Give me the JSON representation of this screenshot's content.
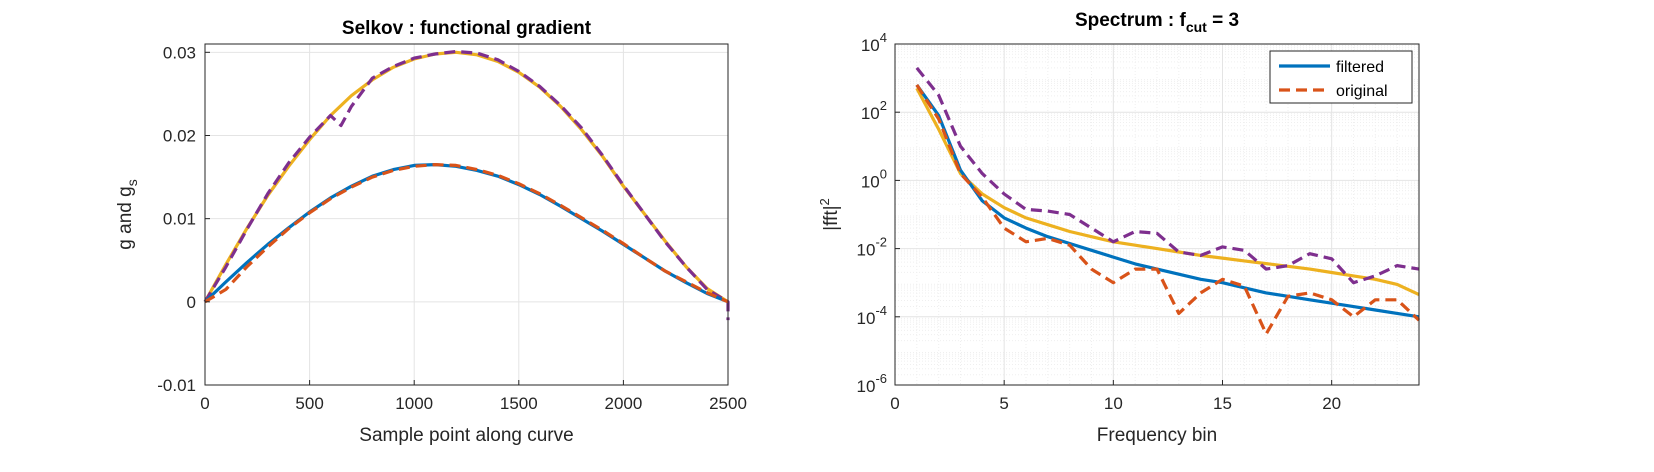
{
  "colors": {
    "blue": "#0072BD",
    "orange": "#D95319",
    "yellow": "#EDB120",
    "purple": "#7E2F8E"
  },
  "chart_data": [
    {
      "type": "line",
      "title": "Selkov : functional gradient",
      "xlabel": "Sample point along curve",
      "ylabel": "g and g",
      "ylabel_sub": "s",
      "xlim": [
        0,
        2500
      ],
      "ylim": [
        -0.01,
        0.031
      ],
      "xticks": [
        0,
        500,
        1000,
        1500,
        2000,
        2500
      ],
      "xtick_labels": [
        "0",
        "500",
        "1000",
        "1500",
        "2000",
        "2500"
      ],
      "yticks": [
        -0.01,
        0,
        0.01,
        0.02,
        0.03
      ],
      "ytick_labels": [
        "-0.01",
        "0",
        "0.01",
        "0.02",
        "0.03"
      ],
      "grid": true,
      "series": [
        {
          "color": "#EDB120",
          "style": "solid",
          "x": [
            0,
            100,
            200,
            300,
            400,
            500,
            600,
            700,
            800,
            900,
            1000,
            1100,
            1200,
            1300,
            1400,
            1500,
            1600,
            1700,
            1800,
            1900,
            2000,
            2100,
            2200,
            2300,
            2400,
            2500
          ],
          "y": [
            0,
            0.0045,
            0.0088,
            0.0128,
            0.0163,
            0.0195,
            0.0224,
            0.0248,
            0.0267,
            0.0282,
            0.0292,
            0.0298,
            0.03,
            0.0297,
            0.0289,
            0.0276,
            0.0258,
            0.0235,
            0.0207,
            0.0175,
            0.0139,
            0.0106,
            0.0073,
            0.0042,
            0.0016,
            0
          ]
        },
        {
          "color": "#7E2F8E",
          "style": "dashed",
          "x": [
            0,
            100,
            200,
            300,
            400,
            500,
            600,
            650,
            700,
            800,
            900,
            1000,
            1100,
            1200,
            1300,
            1400,
            1500,
            1600,
            1700,
            1800,
            1900,
            2000,
            2100,
            2200,
            2300,
            2400,
            2500,
            2500
          ],
          "y": [
            0,
            0.0042,
            0.0087,
            0.013,
            0.0167,
            0.0198,
            0.0224,
            0.0212,
            0.0235,
            0.0269,
            0.0283,
            0.0293,
            0.0298,
            0.0301,
            0.0299,
            0.0291,
            0.0277,
            0.0259,
            0.0236,
            0.0209,
            0.0176,
            0.014,
            0.0106,
            0.0072,
            0.0042,
            0.0015,
            0,
            -0.0022
          ]
        },
        {
          "color": "#0072BD",
          "style": "solid",
          "x": [
            0,
            100,
            200,
            300,
            400,
            500,
            600,
            700,
            800,
            900,
            1000,
            1100,
            1200,
            1300,
            1400,
            1500,
            1600,
            1700,
            1800,
            1900,
            2000,
            2100,
            2200,
            2300,
            2400,
            2500
          ],
          "y": [
            0,
            0.0024,
            0.0047,
            0.0069,
            0.0089,
            0.0108,
            0.0125,
            0.0139,
            0.0151,
            0.0159,
            0.0164,
            0.0165,
            0.0163,
            0.0158,
            0.0151,
            0.0141,
            0.0129,
            0.0115,
            0.01,
            0.0085,
            0.0069,
            0.0053,
            0.0037,
            0.0023,
            0.001,
            0
          ]
        },
        {
          "color": "#D95319",
          "style": "dashed",
          "x": [
            0,
            100,
            200,
            300,
            400,
            500,
            600,
            700,
            800,
            900,
            1000,
            1100,
            1200,
            1300,
            1400,
            1500,
            1600,
            1700,
            1800,
            1900,
            2000,
            2100,
            2200,
            2300,
            2400,
            2500
          ],
          "y": [
            0,
            0.0015,
            0.0042,
            0.0066,
            0.0088,
            0.0107,
            0.0124,
            0.0138,
            0.015,
            0.0158,
            0.0163,
            0.0165,
            0.0164,
            0.0159,
            0.0152,
            0.0142,
            0.013,
            0.0116,
            0.0101,
            0.0086,
            0.007,
            0.0053,
            0.0037,
            0.0024,
            0.0011,
            0
          ]
        }
      ]
    },
    {
      "type": "line",
      "title": "Spectrum : f",
      "title_sub": "cut",
      "title_suffix": " = 3",
      "xlabel": "Frequency bin",
      "ylabel": "|fft|",
      "ylabel_sup": "2",
      "xlim": [
        0,
        24
      ],
      "ylim_log10": [
        -6,
        4
      ],
      "yscale": "log",
      "xticks": [
        0,
        5,
        10,
        15,
        20
      ],
      "xtick_labels": [
        "0",
        "5",
        "10",
        "15",
        "20"
      ],
      "ytick_exponents": [
        "-6",
        "-4",
        "-2",
        "0",
        "2",
        "4"
      ],
      "ytick_base": "10",
      "grid": true,
      "legend": {
        "placement": "top-right",
        "entries": [
          {
            "label": "filtered",
            "color": "#0072BD",
            "style": "solid"
          },
          {
            "label": "original",
            "color": "#D95319",
            "style": "dashed"
          }
        ]
      },
      "series": [
        {
          "color": "#EDB120",
          "style": "solid",
          "x": [
            1,
            2,
            3,
            4,
            5,
            6,
            7,
            8,
            9,
            10,
            11,
            12,
            13,
            14,
            15,
            16,
            17,
            18,
            19,
            20,
            21,
            22,
            23,
            24
          ],
          "y_log10": [
            2.7,
            1.5,
            0.2,
            -0.4,
            -0.8,
            -1.1,
            -1.3,
            -1.5,
            -1.65,
            -1.8,
            -1.9,
            -2.0,
            -2.1,
            -2.2,
            -2.28,
            -2.36,
            -2.44,
            -2.52,
            -2.6,
            -2.7,
            -2.8,
            -2.9,
            -3.05,
            -3.35
          ]
        },
        {
          "color": "#7E2F8E",
          "style": "dashed",
          "x": [
            1,
            2,
            3,
            4,
            5,
            6,
            7,
            8,
            9,
            10,
            11,
            12,
            13,
            14,
            15,
            16,
            17,
            18,
            19,
            20,
            21,
            22,
            23,
            24
          ],
          "y_log10": [
            3.3,
            2.5,
            1.0,
            0.2,
            -0.4,
            -0.85,
            -0.9,
            -1.0,
            -1.4,
            -1.8,
            -1.5,
            -1.55,
            -2.1,
            -2.2,
            -1.95,
            -2.05,
            -2.6,
            -2.5,
            -2.15,
            -2.3,
            -3.0,
            -2.8,
            -2.5,
            -2.6
          ]
        },
        {
          "color": "#0072BD",
          "style": "solid",
          "x": [
            1,
            2,
            3,
            4,
            5,
            6,
            7,
            8,
            9,
            10,
            11,
            12,
            13,
            14,
            15,
            16,
            17,
            18,
            19,
            20,
            21,
            22,
            23,
            24
          ],
          "y_log10": [
            2.8,
            1.9,
            0.3,
            -0.6,
            -1.1,
            -1.4,
            -1.65,
            -1.85,
            -2.05,
            -2.25,
            -2.45,
            -2.6,
            -2.75,
            -2.9,
            -3.0,
            -3.15,
            -3.3,
            -3.4,
            -3.5,
            -3.6,
            -3.7,
            -3.8,
            -3.9,
            -4.0
          ]
        },
        {
          "color": "#D95319",
          "style": "dashed",
          "x": [
            1,
            2,
            3,
            4,
            5,
            6,
            7,
            8,
            9,
            10,
            11,
            12,
            13,
            14,
            15,
            16,
            17,
            18,
            19,
            20,
            21,
            22,
            23,
            24
          ],
          "y_log10": [
            2.8,
            1.8,
            0.2,
            -0.5,
            -1.4,
            -1.8,
            -1.7,
            -1.9,
            -2.6,
            -3.0,
            -2.6,
            -2.6,
            -3.9,
            -3.3,
            -2.9,
            -3.1,
            -4.5,
            -3.4,
            -3.3,
            -3.5,
            -4.0,
            -3.5,
            -3.5,
            -4.1
          ]
        }
      ]
    }
  ]
}
